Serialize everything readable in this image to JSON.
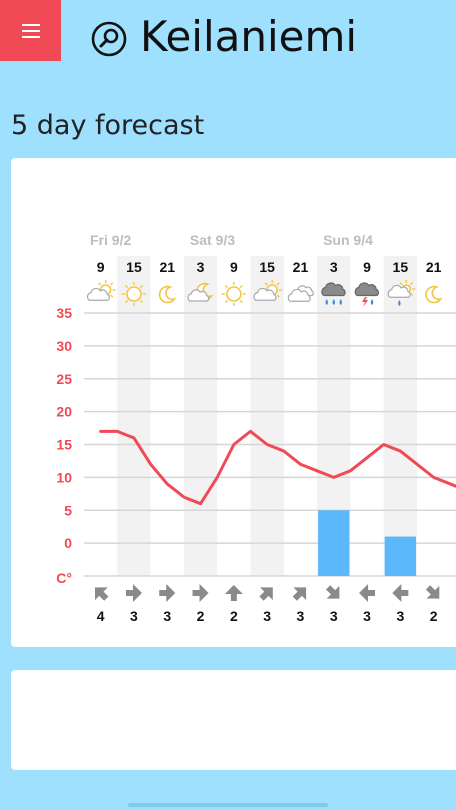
{
  "app": {
    "menu_label": "Menu",
    "search_icon": "search-icon"
  },
  "header": {
    "title": "Keilaniemi"
  },
  "section": {
    "title": "5 day forecast"
  },
  "colors": {
    "background": "#9fe0fe",
    "accent": "#ef4a55",
    "temperature_line": "#ef4a55",
    "precipitation": "#5bb8fb"
  },
  "chart_data": {
    "type": "line",
    "days": [
      {
        "label": "Fri 9/2",
        "start_index": 0
      },
      {
        "label": "Sat 9/3",
        "start_index": 3
      },
      {
        "label": "Sun 9/4",
        "start_index": 7
      }
    ],
    "hours": [
      "9",
      "15",
      "21",
      "3",
      "9",
      "15",
      "21",
      "3",
      "9",
      "15",
      "21"
    ],
    "icons": [
      "partly-cloudy-day-icon",
      "sunny-icon",
      "clear-night-icon",
      "partly-cloudy-night-icon",
      "sunny-icon",
      "partly-cloudy-day-icon",
      "cloudy-icon",
      "heavy-rain-icon",
      "thunderstorm-icon",
      "light-rain-day-icon",
      "clear-night-icon"
    ],
    "temperature": {
      "x": [
        0,
        0.5,
        1,
        1.5,
        2,
        2.5,
        3,
        3.5,
        4,
        4.5,
        5,
        5.5,
        6,
        6.5,
        7,
        7.5,
        8,
        8.5,
        9,
        9.5,
        10,
        10.5,
        11
      ],
      "y": [
        17,
        17,
        16,
        12,
        9,
        7,
        6,
        10,
        15,
        17,
        15,
        14,
        12,
        11,
        10,
        11,
        13,
        15,
        14,
        12,
        10,
        9,
        8
      ]
    },
    "precipitation": {
      "index": [
        7,
        9
      ],
      "value": [
        5,
        1
      ]
    },
    "y_ticks": [
      "35",
      "30",
      "25",
      "20",
      "15",
      "10",
      "5",
      "0"
    ],
    "y_unit": "C°",
    "ylim": [
      -5,
      35
    ],
    "wind": {
      "speed": [
        "4",
        "3",
        "3",
        "2",
        "2",
        "3",
        "3",
        "3",
        "3",
        "3",
        "2"
      ],
      "arrow_rotation_deg": [
        225,
        0,
        0,
        0,
        270,
        315,
        315,
        45,
        180,
        180,
        45
      ]
    },
    "grid": true,
    "shaded_columns": [
      1,
      3,
      5,
      7,
      9
    ]
  }
}
